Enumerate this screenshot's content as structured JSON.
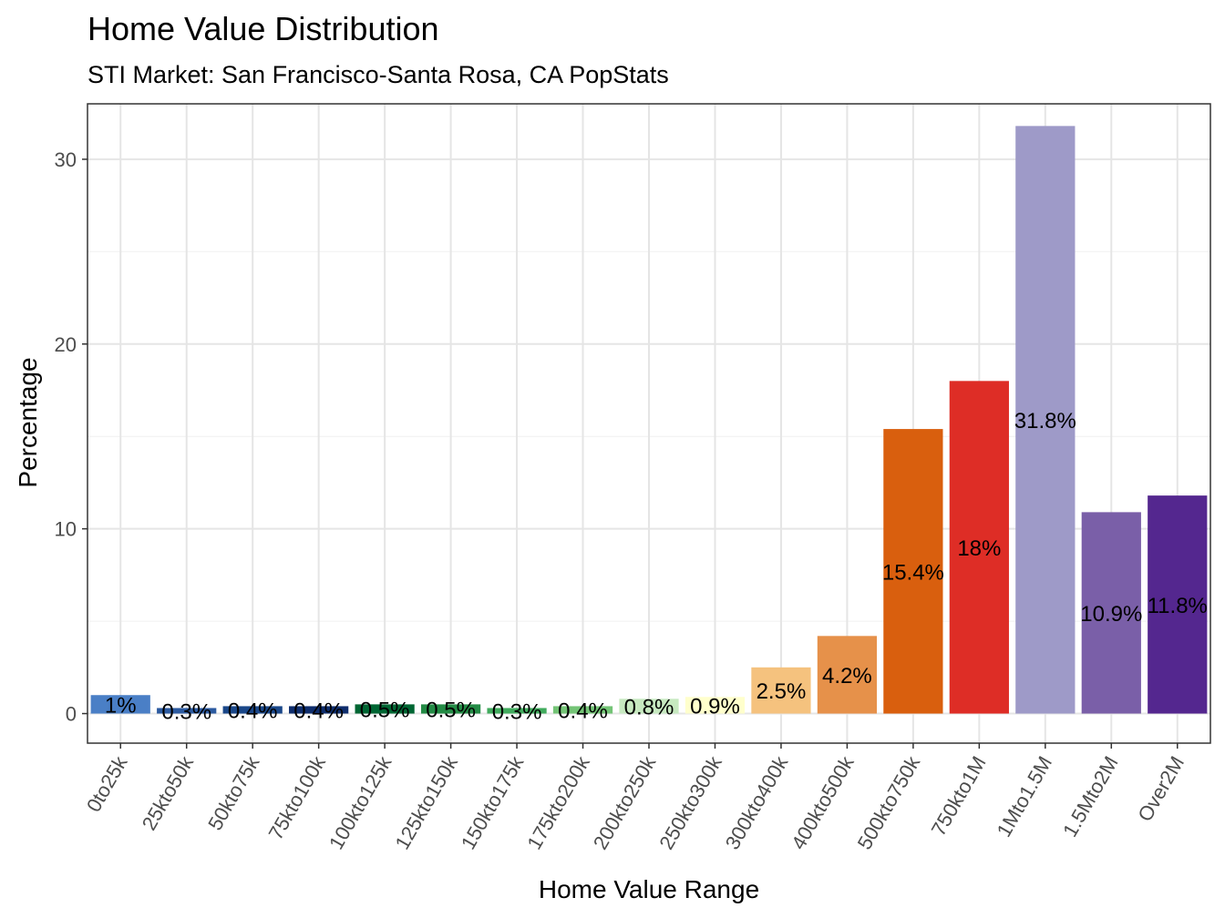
{
  "chart_data": {
    "type": "bar",
    "title": "Home Value Distribution",
    "subtitle": "STI Market: San Francisco-Santa Rosa, CA PopStats",
    "xlabel": "Home Value Range",
    "ylabel": "Percentage",
    "ylim": [
      -1.6,
      33.0
    ],
    "yticks": [
      0,
      10,
      20,
      30
    ],
    "grid": true,
    "legend": "none",
    "categories": [
      "0to25k",
      "25kto50k",
      "50kto75k",
      "75kto100k",
      "100kto125k",
      "125kto150k",
      "150kto175k",
      "175kto200k",
      "200kto250k",
      "250kto300k",
      "300kto400k",
      "400kto500k",
      "500kto750k",
      "750kto1M",
      "1Mto1.5M",
      "1.5Mto2M",
      "Over2M"
    ],
    "values": [
      1,
      0.3,
      0.4,
      0.4,
      0.5,
      0.5,
      0.3,
      0.4,
      0.8,
      0.9,
      2.5,
      4.2,
      15.4,
      18,
      31.8,
      10.9,
      11.8
    ],
    "labels": [
      "1%",
      "0.3%",
      "0.4%",
      "0.4%",
      "0.5%",
      "0.5%",
      "0.3%",
      "0.4%",
      "0.8%",
      "0.9%",
      "2.5%",
      "4.2%",
      "15.4%",
      "18%",
      "31.8%",
      "10.9%",
      "11.8%"
    ],
    "colors": [
      "#4a7fc6",
      "#2c5aa0",
      "#1a4789",
      "#0e2d6d",
      "#006633",
      "#238b45",
      "#41ab5d",
      "#74c476",
      "#c7e9c0",
      "#ffffcc",
      "#f5c27e",
      "#e6914a",
      "#d95f0e",
      "#de2d26",
      "#9e9ac8",
      "#7a5fa8",
      "#54278f"
    ]
  }
}
